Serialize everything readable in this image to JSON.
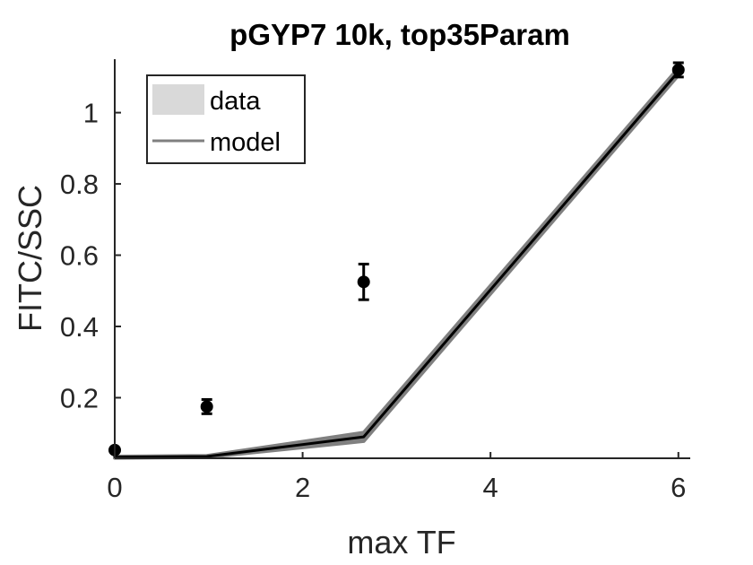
{
  "chart_data": {
    "type": "line",
    "title": "pGYP7 10k, top35Param",
    "xlabel": "max TF",
    "ylabel": "FITC/SSC",
    "xlim": [
      0,
      6.05
    ],
    "ylim": [
      0.03,
      1.15
    ],
    "xticks": [
      0,
      2,
      4,
      6
    ],
    "yticks": [
      0.2,
      0.4,
      0.6,
      0.8,
      1
    ],
    "xtick_labels": [
      "0",
      "2",
      "4",
      "6"
    ],
    "ytick_labels": [
      "0.2",
      "0.4",
      "0.6",
      "0.8",
      "1"
    ],
    "grid": false,
    "legend_position": "top-left",
    "legend": [
      {
        "label": "data",
        "style": "patch",
        "color": "#d9d9d9"
      },
      {
        "label": "model",
        "style": "line",
        "color": "#808080"
      }
    ],
    "series": [
      {
        "kind": "points-with-errorbars",
        "color": "#000000",
        "x": [
          0,
          0.98,
          2.65,
          6.0
        ],
        "y": [
          0.053,
          0.175,
          0.525,
          1.12
        ],
        "err": [
          0.0,
          0.02,
          0.05,
          0.02
        ]
      },
      {
        "kind": "model-line",
        "color": "#000000",
        "x": [
          0,
          0.98,
          2.65,
          6.0
        ],
        "y": [
          0.033,
          0.035,
          0.09,
          1.115
        ]
      },
      {
        "kind": "model-band",
        "color": "#808080",
        "x": [
          0,
          0.98,
          2.65,
          6.0
        ],
        "y_low": [
          0.031,
          0.033,
          0.078,
          1.105
        ],
        "y_high": [
          0.035,
          0.037,
          0.102,
          1.125
        ]
      }
    ]
  }
}
